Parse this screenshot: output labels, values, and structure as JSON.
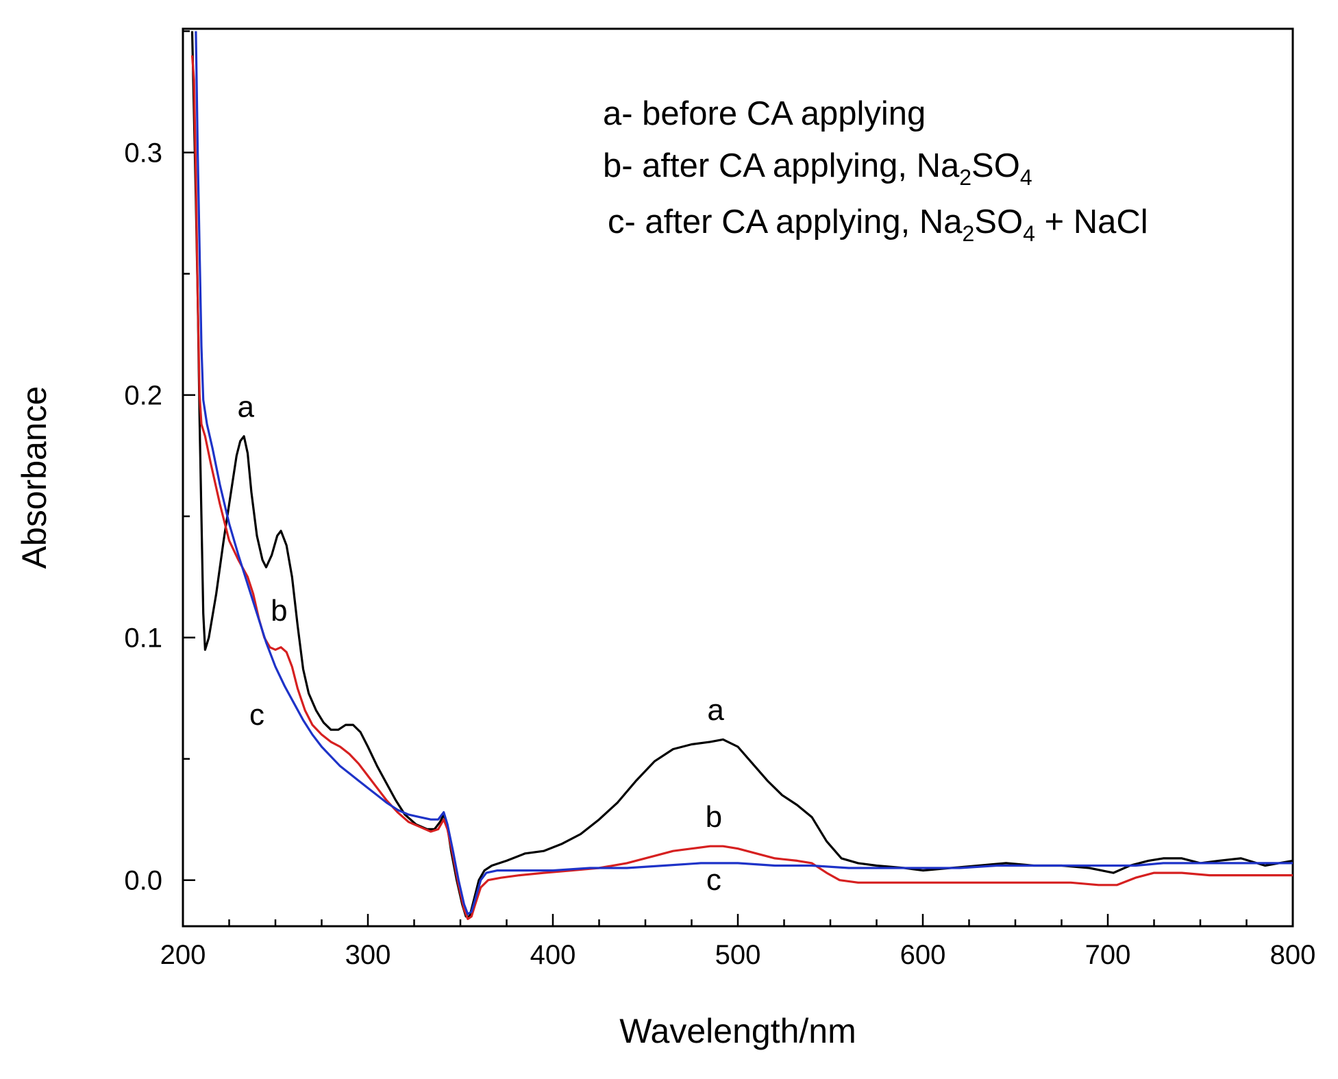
{
  "chart_data": {
    "type": "line",
    "xlabel": "Wavelength/nm",
    "ylabel": "Absorbance",
    "xlim": [
      200,
      800
    ],
    "ylim": [
      -0.019,
      0.351
    ],
    "x_ticks": [
      200,
      300,
      400,
      500,
      600,
      700,
      800
    ],
    "x_tick_labels": [
      "200",
      "300",
      "400",
      "500",
      "600",
      "700",
      "800"
    ],
    "y_ticks": [
      0.0,
      0.1,
      0.2,
      0.3
    ],
    "y_tick_labels": [
      "0.0",
      "0.1",
      "0.2",
      "0.3"
    ],
    "legend_lines": [
      {
        "id": "a",
        "parts": [
          {
            "text": "a- before CA applying",
            "sub": false
          }
        ]
      },
      {
        "id": "b",
        "parts": [
          {
            "text": "b- after CA applying, Na",
            "sub": false
          },
          {
            "text": "2",
            "sub": true
          },
          {
            "text": "SO",
            "sub": false
          },
          {
            "text": "4",
            "sub": true
          }
        ]
      },
      {
        "id": "c",
        "parts": [
          {
            "text": "c- after CA applying, Na",
            "sub": false
          },
          {
            "text": "2",
            "sub": true
          },
          {
            "text": "SO",
            "sub": false
          },
          {
            "text": "4",
            "sub": true
          },
          {
            "text": " + NaCl",
            "sub": false
          }
        ]
      }
    ],
    "legend_position": "top-right",
    "series": [
      {
        "name": "a",
        "label": "a- before CA applying",
        "color": "#000000",
        "points": [
          [
            205,
            0.35
          ],
          [
            207,
            0.28
          ],
          [
            208,
            0.24
          ],
          [
            209,
            0.19
          ],
          [
            210,
            0.15
          ],
          [
            211,
            0.11
          ],
          [
            212,
            0.095
          ],
          [
            214,
            0.1
          ],
          [
            218,
            0.118
          ],
          [
            222,
            0.14
          ],
          [
            226,
            0.16
          ],
          [
            229,
            0.175
          ],
          [
            231,
            0.181
          ],
          [
            233,
            0.183
          ],
          [
            235,
            0.176
          ],
          [
            237,
            0.16
          ],
          [
            240,
            0.142
          ],
          [
            243,
            0.132
          ],
          [
            245,
            0.129
          ],
          [
            248,
            0.134
          ],
          [
            251,
            0.142
          ],
          [
            253,
            0.144
          ],
          [
            256,
            0.138
          ],
          [
            259,
            0.125
          ],
          [
            262,
            0.105
          ],
          [
            265,
            0.087
          ],
          [
            268,
            0.077
          ],
          [
            272,
            0.07
          ],
          [
            276,
            0.065
          ],
          [
            280,
            0.062
          ],
          [
            284,
            0.062
          ],
          [
            288,
            0.064
          ],
          [
            292,
            0.064
          ],
          [
            296,
            0.061
          ],
          [
            300,
            0.055
          ],
          [
            305,
            0.047
          ],
          [
            310,
            0.04
          ],
          [
            315,
            0.033
          ],
          [
            320,
            0.027
          ],
          [
            326,
            0.023
          ],
          [
            332,
            0.021
          ],
          [
            336,
            0.021
          ],
          [
            339,
            0.024
          ],
          [
            341,
            0.027
          ],
          [
            343,
            0.022
          ],
          [
            345,
            0.012
          ],
          [
            348,
            0.0
          ],
          [
            351,
            -0.01
          ],
          [
            353,
            -0.015
          ],
          [
            355,
            -0.015
          ],
          [
            357,
            -0.009
          ],
          [
            360,
            0.0
          ],
          [
            363,
            0.004
          ],
          [
            367,
            0.006
          ],
          [
            375,
            0.008
          ],
          [
            385,
            0.011
          ],
          [
            395,
            0.012
          ],
          [
            405,
            0.015
          ],
          [
            415,
            0.019
          ],
          [
            425,
            0.025
          ],
          [
            435,
            0.032
          ],
          [
            445,
            0.041
          ],
          [
            455,
            0.049
          ],
          [
            465,
            0.054
          ],
          [
            475,
            0.056
          ],
          [
            485,
            0.057
          ],
          [
            492,
            0.058
          ],
          [
            500,
            0.055
          ],
          [
            508,
            0.048
          ],
          [
            516,
            0.041
          ],
          [
            524,
            0.035
          ],
          [
            532,
            0.031
          ],
          [
            540,
            0.026
          ],
          [
            548,
            0.016
          ],
          [
            556,
            0.009
          ],
          [
            565,
            0.007
          ],
          [
            575,
            0.006
          ],
          [
            590,
            0.005
          ],
          [
            600,
            0.004
          ],
          [
            615,
            0.005
          ],
          [
            630,
            0.006
          ],
          [
            645,
            0.007
          ],
          [
            660,
            0.006
          ],
          [
            675,
            0.006
          ],
          [
            690,
            0.005
          ],
          [
            703,
            0.003
          ],
          [
            712,
            0.006
          ],
          [
            722,
            0.008
          ],
          [
            730,
            0.009
          ],
          [
            740,
            0.009
          ],
          [
            750,
            0.007
          ],
          [
            760,
            0.008
          ],
          [
            772,
            0.009
          ],
          [
            785,
            0.006
          ],
          [
            800,
            0.008
          ]
        ]
      },
      {
        "name": "b",
        "label": "b- after CA applying, Na2SO4",
        "color": "#d62020",
        "points": [
          [
            205,
            0.34
          ],
          [
            206,
            0.33
          ],
          [
            207,
            0.29
          ],
          [
            208,
            0.24
          ],
          [
            209,
            0.2
          ],
          [
            210,
            0.188
          ],
          [
            212,
            0.183
          ],
          [
            215,
            0.172
          ],
          [
            220,
            0.155
          ],
          [
            225,
            0.14
          ],
          [
            230,
            0.132
          ],
          [
            235,
            0.125
          ],
          [
            238,
            0.118
          ],
          [
            241,
            0.108
          ],
          [
            244,
            0.1
          ],
          [
            247,
            0.096
          ],
          [
            250,
            0.095
          ],
          [
            253,
            0.096
          ],
          [
            256,
            0.094
          ],
          [
            259,
            0.088
          ],
          [
            262,
            0.079
          ],
          [
            266,
            0.07
          ],
          [
            270,
            0.064
          ],
          [
            275,
            0.06
          ],
          [
            280,
            0.057
          ],
          [
            285,
            0.055
          ],
          [
            290,
            0.052
          ],
          [
            295,
            0.048
          ],
          [
            300,
            0.043
          ],
          [
            305,
            0.038
          ],
          [
            310,
            0.033
          ],
          [
            316,
            0.028
          ],
          [
            322,
            0.024
          ],
          [
            328,
            0.022
          ],
          [
            334,
            0.02
          ],
          [
            338,
            0.021
          ],
          [
            341,
            0.025
          ],
          [
            343,
            0.021
          ],
          [
            346,
            0.01
          ],
          [
            349,
            -0.002
          ],
          [
            352,
            -0.012
          ],
          [
            354,
            -0.016
          ],
          [
            356,
            -0.015
          ],
          [
            358,
            -0.01
          ],
          [
            361,
            -0.003
          ],
          [
            365,
            0.0
          ],
          [
            372,
            0.001
          ],
          [
            382,
            0.002
          ],
          [
            395,
            0.003
          ],
          [
            410,
            0.004
          ],
          [
            425,
            0.005
          ],
          [
            440,
            0.007
          ],
          [
            455,
            0.01
          ],
          [
            465,
            0.012
          ],
          [
            475,
            0.013
          ],
          [
            485,
            0.014
          ],
          [
            492,
            0.014
          ],
          [
            500,
            0.013
          ],
          [
            510,
            0.011
          ],
          [
            520,
            0.009
          ],
          [
            532,
            0.008
          ],
          [
            540,
            0.007
          ],
          [
            548,
            0.003
          ],
          [
            555,
            0.0
          ],
          [
            565,
            -0.001
          ],
          [
            580,
            -0.001
          ],
          [
            600,
            -0.001
          ],
          [
            620,
            -0.001
          ],
          [
            640,
            -0.001
          ],
          [
            660,
            -0.001
          ],
          [
            680,
            -0.001
          ],
          [
            695,
            -0.002
          ],
          [
            705,
            -0.002
          ],
          [
            715,
            0.001
          ],
          [
            725,
            0.003
          ],
          [
            740,
            0.003
          ],
          [
            755,
            0.002
          ],
          [
            770,
            0.002
          ],
          [
            785,
            0.002
          ],
          [
            800,
            0.002
          ]
        ]
      },
      {
        "name": "c",
        "label": "c- after CA applying, Na2SO4 + NaCl",
        "color": "#1e33c8",
        "points": [
          [
            207,
            0.35
          ],
          [
            208,
            0.3
          ],
          [
            209,
            0.26
          ],
          [
            210,
            0.22
          ],
          [
            211,
            0.198
          ],
          [
            213,
            0.188
          ],
          [
            216,
            0.178
          ],
          [
            220,
            0.163
          ],
          [
            225,
            0.147
          ],
          [
            230,
            0.134
          ],
          [
            235,
            0.122
          ],
          [
            240,
            0.11
          ],
          [
            245,
            0.098
          ],
          [
            250,
            0.088
          ],
          [
            255,
            0.08
          ],
          [
            260,
            0.073
          ],
          [
            265,
            0.066
          ],
          [
            270,
            0.06
          ],
          [
            275,
            0.055
          ],
          [
            280,
            0.051
          ],
          [
            285,
            0.047
          ],
          [
            290,
            0.044
          ],
          [
            295,
            0.041
          ],
          [
            300,
            0.038
          ],
          [
            305,
            0.035
          ],
          [
            310,
            0.032
          ],
          [
            316,
            0.029
          ],
          [
            322,
            0.027
          ],
          [
            328,
            0.026
          ],
          [
            334,
            0.025
          ],
          [
            338,
            0.025
          ],
          [
            341,
            0.028
          ],
          [
            343,
            0.023
          ],
          [
            346,
            0.012
          ],
          [
            349,
            0.0
          ],
          [
            352,
            -0.01
          ],
          [
            354,
            -0.014
          ],
          [
            356,
            -0.013
          ],
          [
            358,
            -0.008
          ],
          [
            361,
            0.0
          ],
          [
            364,
            0.003
          ],
          [
            370,
            0.004
          ],
          [
            380,
            0.004
          ],
          [
            400,
            0.004
          ],
          [
            420,
            0.005
          ],
          [
            440,
            0.005
          ],
          [
            460,
            0.006
          ],
          [
            480,
            0.007
          ],
          [
            490,
            0.007
          ],
          [
            500,
            0.007
          ],
          [
            520,
            0.006
          ],
          [
            540,
            0.006
          ],
          [
            560,
            0.005
          ],
          [
            580,
            0.005
          ],
          [
            600,
            0.005
          ],
          [
            620,
            0.005
          ],
          [
            640,
            0.006
          ],
          [
            660,
            0.006
          ],
          [
            680,
            0.006
          ],
          [
            700,
            0.006
          ],
          [
            715,
            0.006
          ],
          [
            730,
            0.007
          ],
          [
            750,
            0.007
          ],
          [
            770,
            0.007
          ],
          [
            785,
            0.007
          ],
          [
            800,
            0.007
          ]
        ]
      }
    ],
    "curve_labels": [
      {
        "text": "a",
        "series": "a",
        "x": 234,
        "y": 0.191
      },
      {
        "text": "b",
        "series": "b",
        "x": 252,
        "y": 0.107
      },
      {
        "text": "c",
        "series": "c",
        "x": 240,
        "y": 0.064
      },
      {
        "text": "a",
        "series": "a",
        "x": 488,
        "y": 0.066
      },
      {
        "text": "b",
        "series": "b",
        "x": 487,
        "y": 0.022
      },
      {
        "text": "c",
        "series": "c",
        "x": 487,
        "y": -0.004
      }
    ]
  }
}
